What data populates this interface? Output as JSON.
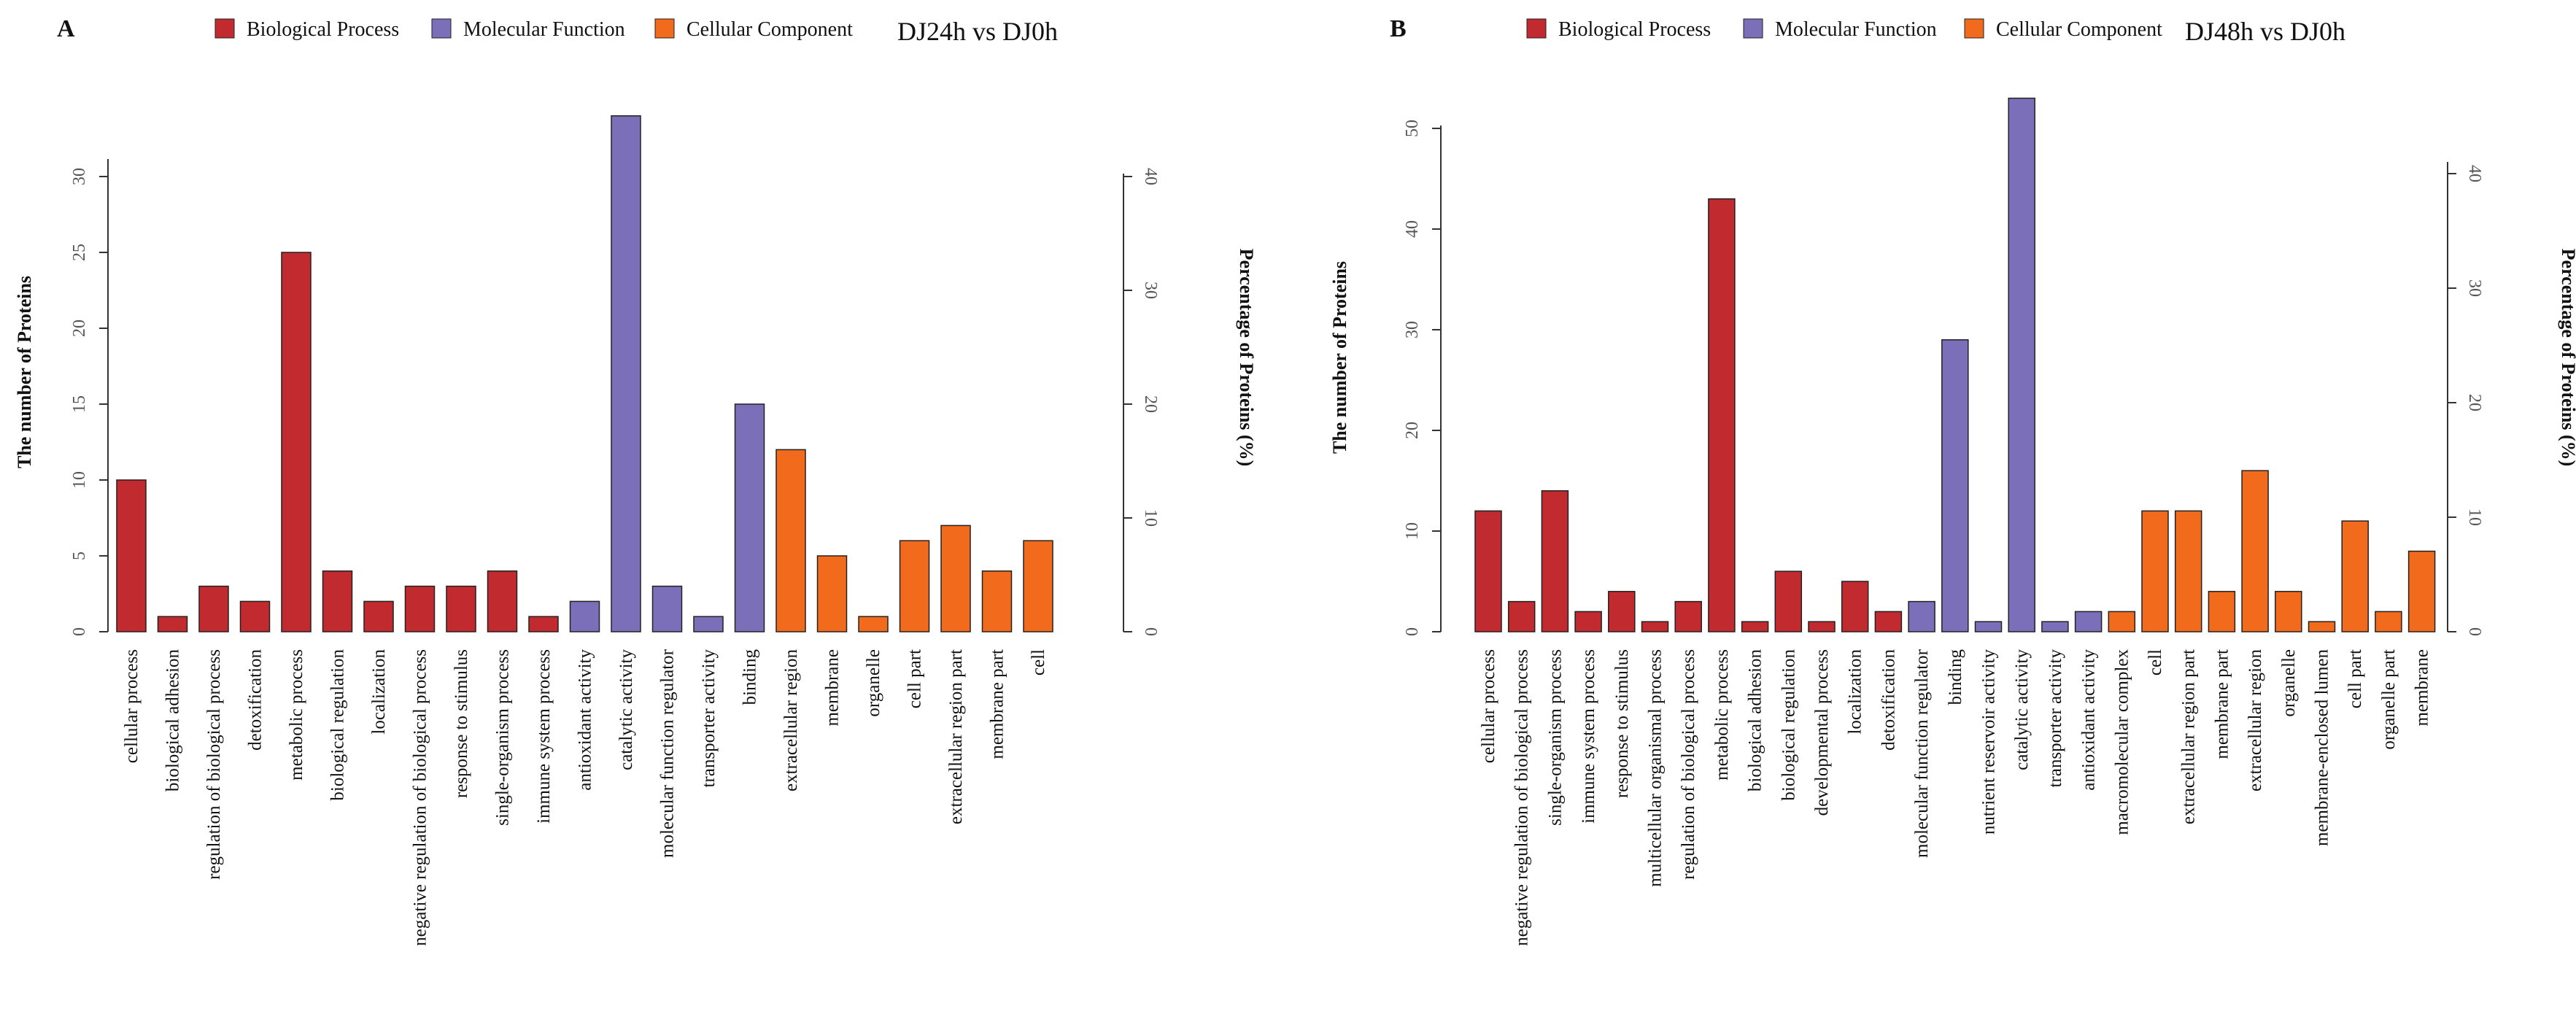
{
  "chart_data": [
    {
      "type": "bar",
      "panel_label": "A",
      "title": "DJ24h vs DJ0h",
      "ylabel": "The number of Proteins",
      "y2label": "Percentage of Proteins (%)",
      "ylim": [
        0,
        30
      ],
      "y2lim": [
        0,
        40
      ],
      "yticks": [
        "0",
        "5",
        "10",
        "15",
        "20",
        "25",
        "30"
      ],
      "y2ticks": [
        "0",
        "10",
        "20",
        "30",
        "40"
      ],
      "legend": [
        {
          "name": "Biological Process",
          "color": "#C12A2E"
        },
        {
          "name": "Molecular Function",
          "color": "#7A6FB8"
        },
        {
          "name": "Cellular Component",
          "color": "#F26A1B"
        }
      ],
      "categories": [
        "cellular process",
        "biological adhesion",
        "regulation of biological process",
        "detoxification",
        "metabolic process",
        "biological regulation",
        "localization",
        "negative regulation of biological process",
        "response to stimulus",
        "single-organism process",
        "immune system process",
        "antioxidant activity",
        "catalytic activity",
        "molecular function regulator",
        "transporter activity",
        "binding",
        "extracellular region",
        "membrane",
        "organelle",
        "cell part",
        "extracellular region part",
        "membrane part",
        "cell"
      ],
      "values": [
        10,
        1,
        3,
        2,
        25,
        4,
        2,
        3,
        3,
        4,
        1,
        2,
        34,
        3,
        1,
        15,
        12,
        5,
        1,
        6,
        7,
        4,
        6
      ],
      "groups": [
        "BP",
        "BP",
        "BP",
        "BP",
        "BP",
        "BP",
        "BP",
        "BP",
        "BP",
        "BP",
        "BP",
        "MF",
        "MF",
        "MF",
        "MF",
        "MF",
        "CC",
        "CC",
        "CC",
        "CC",
        "CC",
        "CC",
        "CC"
      ]
    },
    {
      "type": "bar",
      "panel_label": "B",
      "title": "DJ48h vs DJ0h",
      "ylabel": "The number of Proteins",
      "y2label": "Percentage of Proteins (%)",
      "ylim": [
        0,
        50
      ],
      "y2lim": [
        0,
        40
      ],
      "yticks": [
        "0",
        "10",
        "20",
        "30",
        "40",
        "50"
      ],
      "y2ticks": [
        "0",
        "10",
        "20",
        "30",
        "40"
      ],
      "legend": [
        {
          "name": "Biological Process",
          "color": "#C12A2E"
        },
        {
          "name": "Molecular Function",
          "color": "#7A6FB8"
        },
        {
          "name": "Cellular Component",
          "color": "#F26A1B"
        }
      ],
      "categories": [
        "cellular process",
        "negative regulation of biological process",
        "single-organism process",
        "immune system process",
        "response to stimulus",
        "multicellular organismal process",
        "regulation of biological process",
        "metabolic process",
        "biological adhesion",
        "biological regulation",
        "developmental process",
        "localization",
        "detoxification",
        "molecular function regulator",
        "binding",
        "nutrient reservoir activity",
        "catalytic activity",
        "transporter activity",
        "antioxidant activity",
        "macromolecular complex",
        "cell",
        "extracellular region part",
        "membrane part",
        "extracellular region",
        "organelle",
        "membrane-enclosed lumen",
        "cell part",
        "organelle part",
        "membrane"
      ],
      "values": [
        12,
        3,
        14,
        2,
        4,
        1,
        3,
        43,
        1,
        6,
        1,
        5,
        2,
        3,
        29,
        1,
        53,
        1,
        2,
        2,
        12,
        12,
        4,
        16,
        4,
        1,
        11,
        2,
        8
      ],
      "groups": [
        "BP",
        "BP",
        "BP",
        "BP",
        "BP",
        "BP",
        "BP",
        "BP",
        "BP",
        "BP",
        "BP",
        "BP",
        "BP",
        "MF",
        "MF",
        "MF",
        "MF",
        "MF",
        "MF",
        "CC",
        "CC",
        "CC",
        "CC",
        "CC",
        "CC",
        "CC",
        "CC",
        "CC",
        "CC"
      ]
    }
  ]
}
